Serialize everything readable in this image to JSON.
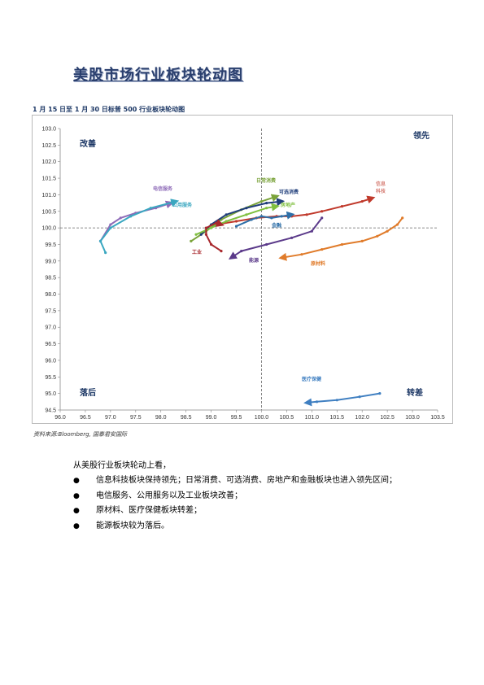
{
  "title": "美股市场行业板块轮动图",
  "caption": "1 月 15 日至 1 月 30 日标普 500 行业板块轮动图",
  "source": "资料来源:Bloomberg, 国泰君安国际",
  "text": {
    "intro": "从美股行业板块轮动上看，",
    "bullets": [
      "信息科技板块保持领先；日常消费、可选消费、房地产和金融板块也进入领先区间；",
      "电信服务、公用服务以及工业板块改善；",
      "原材料、医疗保健板块转差；",
      "能源板块较为落后。"
    ]
  },
  "chart_data": {
    "type": "line",
    "title": "",
    "xlabel": "",
    "ylabel": "",
    "xlim": [
      96.0,
      103.5
    ],
    "ylim": [
      94.5,
      103.0
    ],
    "xticks": [
      "96.0",
      "96.5",
      "97.0",
      "97.5",
      "98.0",
      "98.5",
      "99.0",
      "99.5",
      "100.0",
      "100.5",
      "101.0",
      "101.5",
      "102.0",
      "102.5",
      "103.0",
      "103.5"
    ],
    "yticks": [
      "103.0",
      "102.5",
      "102.0",
      "101.5",
      "101.0",
      "100.5",
      "100.0",
      "99.5",
      "99.0",
      "98.5",
      "98.0",
      "97.5",
      "97.0",
      "96.5",
      "96.0",
      "95.5",
      "95.0",
      "94.5"
    ],
    "reference": {
      "x": 100.0,
      "y": 100.0
    },
    "quadrants": {
      "top_left": "改善",
      "top_right": "领先",
      "bottom_left": "落后",
      "bottom_right": "转差"
    },
    "series": [
      {
        "name": "信息科技",
        "color": "#c0392b",
        "label_lines": [
          "信息",
          "科技"
        ],
        "points": [
          [
            99.1,
            100.1
          ],
          [
            99.5,
            100.2
          ],
          [
            99.9,
            100.3
          ],
          [
            100.3,
            100.35
          ],
          [
            100.6,
            100.35
          ],
          [
            100.9,
            100.4
          ],
          [
            101.2,
            100.5
          ],
          [
            101.6,
            100.65
          ],
          [
            102.0,
            100.8
          ],
          [
            102.2,
            100.9
          ]
        ]
      },
      {
        "name": "日常消费",
        "color": "#7aa33a",
        "points": [
          [
            98.6,
            99.6
          ],
          [
            98.9,
            99.9
          ],
          [
            99.2,
            100.25
          ],
          [
            99.6,
            100.55
          ],
          [
            100.0,
            100.8
          ],
          [
            100.3,
            100.95
          ]
        ]
      },
      {
        "name": "可选消费",
        "color": "#1f3d7a",
        "points": [
          [
            98.8,
            99.8
          ],
          [
            99.0,
            100.1
          ],
          [
            99.3,
            100.4
          ],
          [
            99.7,
            100.6
          ],
          [
            100.1,
            100.75
          ],
          [
            100.4,
            100.8
          ]
        ]
      },
      {
        "name": "房地产",
        "color": "#7fbf3f",
        "points": [
          [
            98.7,
            99.8
          ],
          [
            99.0,
            100.0
          ],
          [
            99.3,
            100.2
          ],
          [
            99.7,
            100.4
          ],
          [
            100.1,
            100.6
          ],
          [
            100.3,
            100.65
          ]
        ]
      },
      {
        "name": "金融",
        "color": "#2e6fa8",
        "points": [
          [
            99.5,
            100.05
          ],
          [
            99.8,
            100.25
          ],
          [
            100.0,
            100.35
          ],
          [
            100.2,
            100.3
          ],
          [
            100.4,
            100.35
          ],
          [
            100.6,
            100.4
          ]
        ]
      },
      {
        "name": "电信服务",
        "color": "#8e6bb8",
        "points": [
          [
            96.8,
            99.6
          ],
          [
            97.0,
            100.1
          ],
          [
            97.2,
            100.3
          ],
          [
            97.5,
            100.45
          ],
          [
            97.9,
            100.6
          ],
          [
            98.2,
            100.75
          ]
        ]
      },
      {
        "name": "公用服务",
        "color": "#3aa7c0",
        "points": [
          [
            96.9,
            99.25
          ],
          [
            96.8,
            99.6
          ],
          [
            97.0,
            100.0
          ],
          [
            97.4,
            100.35
          ],
          [
            97.8,
            100.6
          ],
          [
            98.3,
            100.8
          ]
        ]
      },
      {
        "name": "工业",
        "color": "#a8282d",
        "points": [
          [
            99.2,
            99.3
          ],
          [
            99.0,
            99.5
          ],
          [
            98.9,
            99.8
          ],
          [
            98.9,
            100.0
          ],
          [
            99.1,
            100.15
          ],
          [
            99.2,
            100.1
          ]
        ]
      },
      {
        "name": "能源",
        "color": "#5b3a8a",
        "points": [
          [
            101.2,
            100.3
          ],
          [
            101.0,
            99.9
          ],
          [
            100.6,
            99.7
          ],
          [
            100.1,
            99.5
          ],
          [
            99.6,
            99.3
          ],
          [
            99.4,
            99.1
          ]
        ]
      },
      {
        "name": "原材料",
        "color": "#e07b2a",
        "points": [
          [
            102.8,
            100.3
          ],
          [
            102.7,
            100.1
          ],
          [
            102.5,
            99.9
          ],
          [
            102.3,
            99.75
          ],
          [
            102.0,
            99.6
          ],
          [
            101.6,
            99.5
          ],
          [
            101.2,
            99.35
          ],
          [
            100.8,
            99.2
          ],
          [
            100.4,
            99.1
          ]
        ]
      },
      {
        "name": "医疗保健",
        "color": "#3f7fc1",
        "points": [
          [
            102.35,
            95.0
          ],
          [
            101.95,
            94.9
          ],
          [
            101.5,
            94.8
          ],
          [
            101.1,
            94.75
          ],
          [
            100.9,
            94.72
          ]
        ]
      }
    ]
  }
}
